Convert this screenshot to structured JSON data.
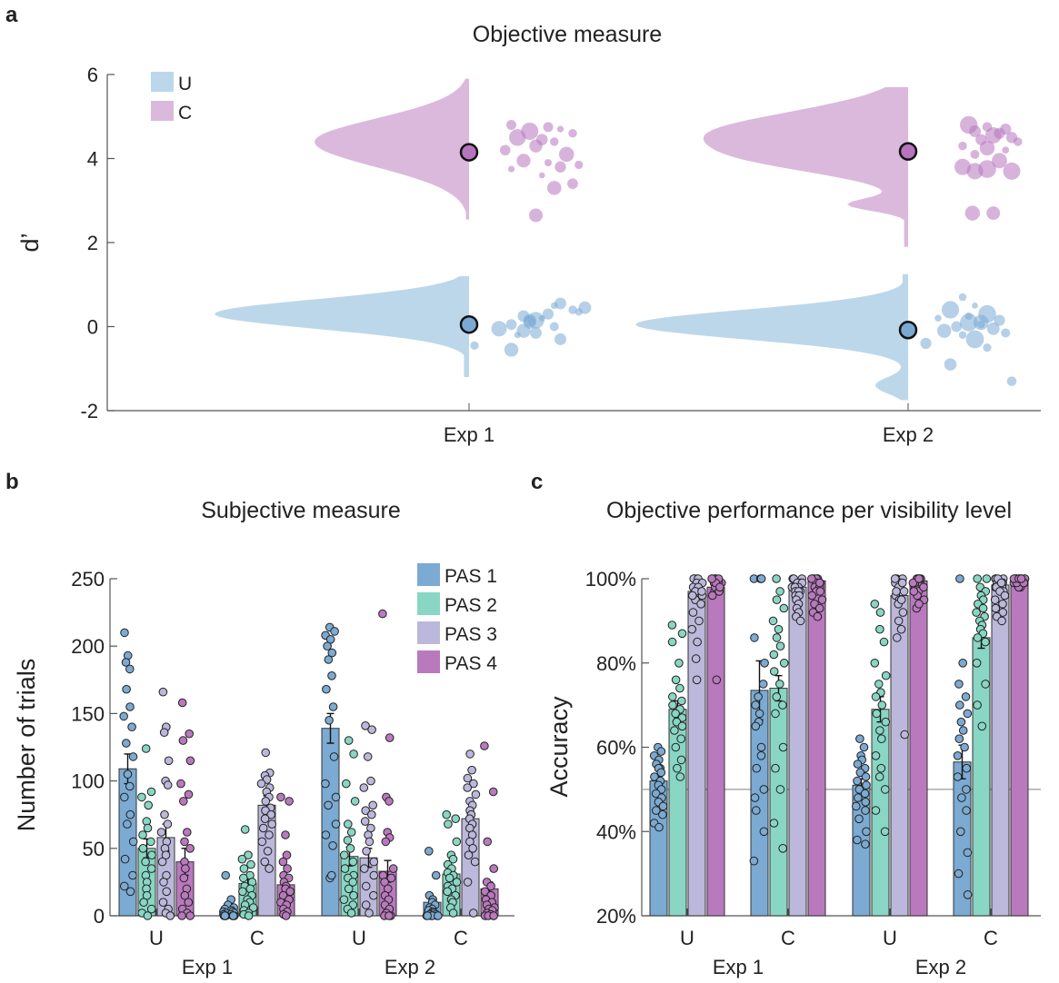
{
  "colors": {
    "U": "#bcd7ea",
    "C": "#dbb9dc",
    "U_dot": "#7aaad3",
    "C_dot": "#b674bd",
    "pas1": "#7baad2",
    "pas2": "#88d6c3",
    "pas3": "#bbb8db",
    "pas4": "#b979bd",
    "axis": "#555555",
    "chance_line": "#999999"
  },
  "chart_data": [
    {
      "panel": "a",
      "type": "violin",
      "title": "Objective measure",
      "ylabel": "d’",
      "ylim": [
        -2,
        6
      ],
      "yticks": [
        "-2",
        "0",
        "2",
        "4",
        "6"
      ],
      "categories": [
        "Exp 1",
        "Exp 2"
      ],
      "legend": [
        "U",
        "C"
      ],
      "legend_position": "top-left",
      "series": [
        {
          "name": "U",
          "means": [
            0.05,
            -0.08
          ],
          "range": [
            [
              -1.2,
              1.2
            ],
            [
              -1.75,
              1.25
            ]
          ],
          "points": [
            [
              [
                0.55,
                0.45,
                0.5,
                0.4,
                0.3,
                0.25,
                0.2,
                0.15,
                0.1,
                0.05,
                0.0,
                -0.05,
                -0.1,
                -0.2,
                -0.3,
                -0.45,
                -0.55,
                0.35,
                0.15,
                -0.15
              ],
              [
                0.3,
                0.5,
                0.25,
                0.4,
                0.2,
                0.0,
                0.15,
                0.1,
                0.05,
                -0.1,
                0.25,
                -0.2,
                0.0,
                -0.05,
                0.3,
                -0.4,
                -0.1,
                0.45,
                0.05,
                0.1
              ]
            ],
            [
              [
                0.7,
                0.5,
                0.4,
                0.3,
                0.2,
                0.15,
                0.1,
                0.05,
                0.0,
                -0.05,
                -0.1,
                -0.15,
                -0.2,
                -0.3,
                -0.4,
                -0.5,
                -0.9,
                -1.3,
                0.25,
                0.1
              ],
              [
                0.0,
                0.1,
                -0.1,
                0.2,
                -0.2,
                0.3,
                0.05,
                0.15,
                -0.05,
                0.25,
                -0.15,
                0.35,
                0.0,
                0.1,
                -0.3,
                0.2,
                -0.1,
                0.4,
                0.05,
                0.15
              ]
            ]
          ]
        },
        {
          "name": "C",
          "means": [
            4.15,
            4.17
          ],
          "range": [
            [
              2.55,
              5.9
            ],
            [
              1.9,
              5.7
            ]
          ],
          "points": [
            [
              [
                4.8,
                4.75,
                4.7,
                4.65,
                4.6,
                4.5,
                4.45,
                4.4,
                4.3,
                4.2,
                4.1,
                3.95,
                3.9,
                3.85,
                3.8,
                3.75,
                3.6,
                3.4,
                3.3,
                2.65
              ],
              [
                -0.1,
                0.2,
                0.3,
                0.05,
                0.4,
                -0.05,
                0.15,
                0.25,
                0.1,
                -0.15,
                0.35,
                0.0,
                0.2,
                0.45,
                0.3,
                -0.1,
                0.15,
                0.4,
                0.25,
                0.1
              ]
            ],
            [
              [
                4.8,
                4.75,
                4.7,
                4.65,
                4.6,
                4.55,
                4.5,
                4.45,
                4.4,
                4.3,
                4.25,
                4.2,
                4.1,
                3.95,
                3.8,
                3.75,
                3.7,
                3.7,
                2.7,
                2.7
              ],
              [
                0.05,
                0.2,
                0.35,
                0.1,
                0.3,
                0.25,
                0.4,
                0.15,
                0.45,
                0.0,
                0.2,
                0.35,
                0.1,
                0.3,
                0.0,
                0.2,
                0.4,
                0.1,
                0.08,
                0.25
              ]
            ]
          ]
        }
      ]
    },
    {
      "panel": "b",
      "type": "bar",
      "title": "Subjective measure",
      "ylabel": "Number of trials",
      "ylim": [
        0,
        250
      ],
      "yticks": [
        "0",
        "50",
        "100",
        "150",
        "200",
        "250"
      ],
      "groups": [
        "U",
        "C",
        "U",
        "C"
      ],
      "experiments": [
        "Exp 1",
        "Exp 2"
      ],
      "legend": [
        "PAS 1",
        "PAS 2",
        "PAS 3",
        "PAS 4"
      ],
      "legend_position": "top-right",
      "means": [
        [
          109,
          50,
          58,
          40
        ],
        [
          4,
          24,
          82,
          23
        ],
        [
          139,
          44,
          43,
          33
        ],
        [
          10,
          31,
          72,
          20
        ]
      ],
      "sem": [
        [
          11,
          7,
          10,
          10
        ],
        [
          2,
          4,
          7,
          4
        ],
        [
          11,
          7,
          7,
          8
        ],
        [
          3,
          5,
          7,
          5
        ]
      ],
      "points": [
        [
          [
            210,
            193,
            188,
            183,
            168,
            155,
            148,
            140,
            128,
            118,
            105,
            96,
            88,
            75,
            68,
            55,
            42,
            30,
            22,
            18
          ],
          [
            124,
            92,
            88,
            82,
            70,
            65,
            60,
            55,
            50,
            45,
            40,
            35,
            30,
            25,
            20,
            15,
            10,
            5,
            2,
            0
          ],
          [
            166,
            140,
            136,
            115,
            100,
            97,
            75,
            68,
            62,
            55,
            50,
            45,
            40,
            30,
            25,
            18,
            10,
            5,
            2,
            0
          ],
          [
            158,
            135,
            130,
            115,
            98,
            90,
            85,
            62,
            55,
            50,
            40,
            35,
            28,
            20,
            15,
            10,
            5,
            2,
            0,
            0
          ]
        ],
        [
          [
            30,
            12,
            8,
            6,
            5,
            4,
            3,
            3,
            2,
            2,
            1,
            1,
            0,
            0,
            0,
            0,
            0,
            0,
            0,
            0
          ],
          [
            64,
            45,
            42,
            38,
            35,
            30,
            28,
            25,
            22,
            20,
            18,
            15,
            12,
            10,
            8,
            6,
            4,
            2,
            1,
            0
          ],
          [
            121,
            106,
            104,
            101,
            98,
            95,
            92,
            88,
            85,
            80,
            78,
            75,
            72,
            68,
            65,
            60,
            55,
            48,
            40,
            35
          ],
          [
            88,
            85,
            60,
            45,
            40,
            35,
            30,
            28,
            25,
            22,
            20,
            18,
            15,
            12,
            10,
            8,
            5,
            3,
            1,
            0
          ]
        ],
        [
          [
            214,
            211,
            208,
            205,
            200,
            195,
            190,
            178,
            168,
            155,
            145,
            118,
            98,
            88,
            82,
            68,
            60,
            52,
            28,
            30
          ],
          [
            130,
            120,
            98,
            85,
            68,
            62,
            56,
            50,
            45,
            40,
            35,
            30,
            28,
            25,
            20,
            15,
            12,
            8,
            5,
            2
          ],
          [
            141,
            138,
            118,
            100,
            95,
            82,
            78,
            75,
            70,
            65,
            60,
            55,
            48,
            40,
            35,
            30,
            22,
            15,
            8,
            2
          ],
          [
            224,
            132,
            88,
            85,
            62,
            58,
            55,
            35,
            30,
            28,
            25,
            20,
            15,
            12,
            8,
            5,
            2,
            0,
            0,
            0
          ]
        ],
        [
          [
            48,
            30,
            15,
            12,
            10,
            8,
            6,
            5,
            4,
            3,
            2,
            2,
            1,
            1,
            0,
            0,
            0,
            0,
            0,
            0
          ],
          [
            75,
            72,
            68,
            55,
            45,
            42,
            38,
            35,
            32,
            30,
            28,
            25,
            22,
            20,
            18,
            15,
            12,
            10,
            6,
            2
          ],
          [
            120,
            108,
            102,
            98,
            95,
            90,
            85,
            82,
            78,
            75,
            72,
            68,
            65,
            60,
            55,
            50,
            45,
            40,
            25,
            2
          ],
          [
            126,
            92,
            55,
            35,
            25,
            22,
            18,
            15,
            12,
            10,
            8,
            6,
            5,
            4,
            2,
            1,
            0,
            0,
            0,
            0
          ]
        ]
      ]
    },
    {
      "panel": "c",
      "type": "bar",
      "title": "Objective performance per visibility level",
      "ylabel": "Accuracy",
      "ylim": [
        20,
        100
      ],
      "yticks": [
        "20%",
        "40%",
        "60%",
        "80%",
        "100%"
      ],
      "groups": [
        "U",
        "C",
        "U",
        "C"
      ],
      "experiments": [
        "Exp 1",
        "Exp 2"
      ],
      "chance": 50,
      "means": [
        [
          52,
          69,
          97,
          98
        ],
        [
          73.5,
          74,
          98,
          99.5
        ],
        [
          51,
          69,
          96,
          99.5
        ],
        [
          56.5,
          86,
          98.5,
          100
        ]
      ],
      "sem": [
        [
          1,
          2,
          1.5,
          1.5
        ],
        [
          7,
          3,
          1,
          1
        ],
        [
          1.5,
          3,
          1.5,
          1
        ],
        [
          4,
          2.5,
          1,
          0.5
        ]
      ],
      "points": [
        [
          [
            60,
            59,
            58,
            57,
            56,
            55,
            55,
            54,
            53,
            52,
            51,
            50,
            49,
            48,
            47,
            46,
            45,
            44,
            42,
            41
          ],
          [
            89,
            87,
            85,
            80,
            76,
            74,
            72,
            71,
            70,
            69,
            68,
            67,
            66,
            65,
            64,
            62,
            60,
            57,
            55,
            53
          ],
          [
            100,
            100,
            100,
            100,
            99,
            99,
            98,
            98,
            97,
            96,
            95,
            94,
            92,
            90,
            88,
            85,
            81,
            76,
            96,
            97
          ],
          [
            100,
            100,
            100,
            99,
            99,
            99,
            98,
            98,
            97,
            97,
            96,
            76,
            100,
            99,
            98,
            100,
            99,
            97,
            100,
            98
          ]
        ],
        [
          [
            100,
            100,
            86,
            75,
            70,
            68,
            66,
            60,
            55,
            50,
            45,
            40,
            33,
            80,
            72,
            100,
            65,
            58,
            48,
            100
          ],
          [
            100,
            97,
            95,
            93,
            90,
            88,
            86,
            84,
            82,
            80,
            78,
            75,
            72,
            70,
            68,
            60,
            55,
            50,
            42,
            36
          ],
          [
            100,
            100,
            100,
            99,
            99,
            99,
            98,
            98,
            98,
            97,
            97,
            97,
            96,
            96,
            95,
            94,
            93,
            92,
            91,
            90
          ],
          [
            100,
            100,
            100,
            100,
            100,
            99,
            99,
            99,
            98,
            98,
            97,
            97,
            96,
            95,
            94,
            93,
            92,
            91,
            100,
            99
          ]
        ],
        [
          [
            62,
            60,
            58,
            57,
            56,
            55,
            54,
            53,
            52,
            51,
            50,
            49,
            48,
            47,
            46,
            45,
            43,
            40,
            38,
            37
          ],
          [
            94,
            92,
            88,
            85,
            80,
            77,
            75,
            73,
            72,
            70,
            68,
            66,
            64,
            62,
            58,
            55,
            53,
            50,
            45,
            40
          ],
          [
            100,
            100,
            100,
            99,
            99,
            98,
            98,
            97,
            96,
            95,
            94,
            92,
            90,
            88,
            86,
            63,
            97,
            99,
            100,
            95
          ],
          [
            100,
            100,
            100,
            99,
            99,
            99,
            98,
            97,
            96,
            95,
            93,
            100,
            99,
            98,
            100,
            100,
            99,
            100,
            97,
            94
          ]
        ],
        [
          [
            100,
            80,
            75,
            72,
            70,
            68,
            66,
            64,
            62,
            60,
            58,
            55,
            53,
            50,
            48,
            45,
            40,
            35,
            30,
            25
          ],
          [
            100,
            100,
            98,
            97,
            96,
            95,
            94,
            93,
            92,
            91,
            90,
            89,
            88,
            87,
            86,
            85,
            80,
            75,
            70,
            65
          ],
          [
            100,
            100,
            100,
            99,
            99,
            99,
            98,
            98,
            98,
            97,
            97,
            96,
            95,
            94,
            93,
            92,
            91,
            90,
            100,
            99
          ],
          [
            100,
            100,
            100,
            100,
            100,
            100,
            99,
            99,
            99,
            98,
            98,
            100,
            100,
            100,
            99,
            100,
            100,
            99,
            100,
            100
          ]
        ]
      ]
    }
  ],
  "panels": {
    "a": {
      "label": "a",
      "title": "Objective measure",
      "ylabel": "d’"
    },
    "b": {
      "label": "b",
      "title": "Subjective measure",
      "ylabel": "Number of trials",
      "x_groups": [
        "U",
        "C",
        "U",
        "C"
      ],
      "x_experiments": [
        "Exp 1",
        "Exp 2"
      ]
    },
    "c": {
      "label": "c",
      "title": "Objective performance per visibility level",
      "ylabel": "Accuracy",
      "x_groups": [
        "U",
        "C",
        "U",
        "C"
      ],
      "x_experiments": [
        "Exp 1",
        "Exp 2"
      ]
    }
  }
}
